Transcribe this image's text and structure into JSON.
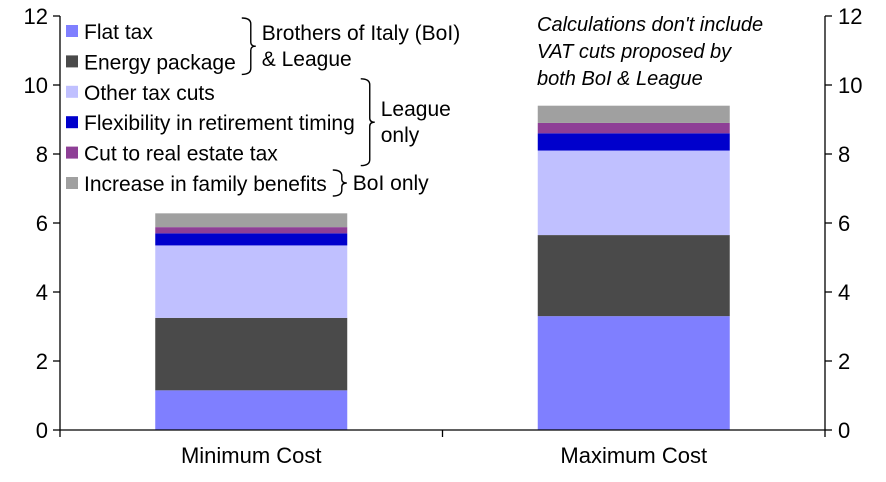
{
  "chart_data": {
    "type": "bar",
    "stacked": true,
    "categories": [
      "Minimum Cost",
      "Maximum Cost"
    ],
    "series": [
      {
        "name": "Flat tax",
        "color": "#7f7fff",
        "values": [
          1.15,
          3.3
        ]
      },
      {
        "name": "Energy package",
        "color": "#4a4a4a",
        "values": [
          2.1,
          2.35
        ]
      },
      {
        "name": "Other tax cuts",
        "color": "#c0c0ff",
        "values": [
          2.1,
          2.45
        ]
      },
      {
        "name": "Flexibility in retirement timing",
        "color": "#0000cc",
        "values": [
          0.35,
          0.5
        ]
      },
      {
        "name": "Cut to real estate tax",
        "color": "#8e3f96",
        "values": [
          0.18,
          0.3
        ]
      },
      {
        "name": "Increase in family benefits",
        "color": "#a0a0a0",
        "values": [
          0.4,
          0.5
        ]
      }
    ],
    "ylim": [
      0,
      12
    ],
    "yticks": [
      0,
      2,
      4,
      6,
      8,
      10,
      12
    ],
    "y_axis_sides": [
      "left",
      "right"
    ],
    "legend_position": "top-left",
    "legend_groups": [
      {
        "label": "Brothers of Italy (BoI) & League",
        "label_lines": [
          "Brothers of Italy (BoI)",
          "& League"
        ],
        "members": [
          0,
          1
        ]
      },
      {
        "label": "League only",
        "label_lines": [
          "League",
          "only"
        ],
        "members": [
          2,
          3,
          4
        ]
      },
      {
        "label": "BoI only",
        "label_lines": [
          "BoI only"
        ],
        "members": [
          5
        ]
      }
    ],
    "annotation": {
      "text": "Calculations don't include VAT cuts proposed by both BoI & League",
      "lines": [
        "Calculations don't include",
        "VAT cuts proposed by",
        "both BoI & League"
      ],
      "position": "top-right"
    }
  }
}
